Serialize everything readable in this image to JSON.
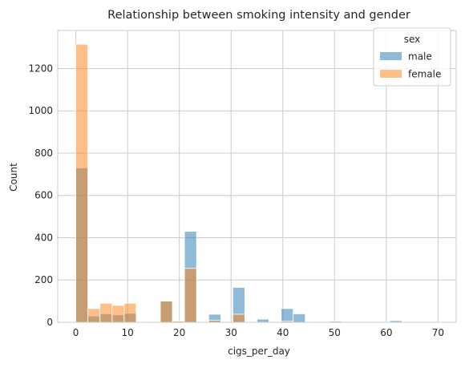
{
  "chart_data": {
    "type": "bar",
    "subtype": "overlapping-histogram",
    "title": "Relationship between smoking intensity and gender",
    "xlabel": "cigs_per_day",
    "ylabel": "Count",
    "xlim": [
      -3.5,
      73.5
    ],
    "ylim": [
      0,
      1380
    ],
    "xticks": [
      0,
      10,
      20,
      30,
      40,
      50,
      60,
      70
    ],
    "yticks": [
      0,
      200,
      400,
      600,
      800,
      1000,
      1200
    ],
    "bin_width": 2.33,
    "bin_starts": [
      0,
      2.33,
      4.67,
      7.0,
      9.33,
      11.67,
      14.0,
      16.33,
      18.67,
      21.0,
      23.33,
      25.67,
      28.0,
      30.33,
      32.67,
      35.0,
      37.33,
      39.67,
      42.0,
      44.33,
      46.67,
      49.0,
      51.33,
      53.67,
      56.0,
      58.33,
      60.67,
      63.0,
      65.33,
      67.67
    ],
    "series": [
      {
        "name": "male",
        "color": "#1f77b4",
        "values": [
          730,
          30,
          40,
          35,
          42,
          0,
          0,
          100,
          5,
          430,
          0,
          38,
          0,
          165,
          0,
          15,
          0,
          65,
          40,
          0,
          0,
          5,
          0,
          0,
          0,
          0,
          8,
          0,
          0,
          2
        ]
      },
      {
        "name": "female",
        "color": "#ff7f0e",
        "values": [
          1315,
          65,
          90,
          80,
          90,
          0,
          0,
          100,
          5,
          255,
          0,
          10,
          0,
          38,
          0,
          0,
          0,
          5,
          0,
          0,
          0,
          0,
          0,
          0,
          0,
          0,
          0,
          0,
          0,
          0
        ]
      }
    ],
    "legend": {
      "title": "sex",
      "placement": "top-right",
      "entries": [
        "male",
        "female"
      ]
    },
    "grid": true,
    "style": "seaborn-whitegrid"
  }
}
